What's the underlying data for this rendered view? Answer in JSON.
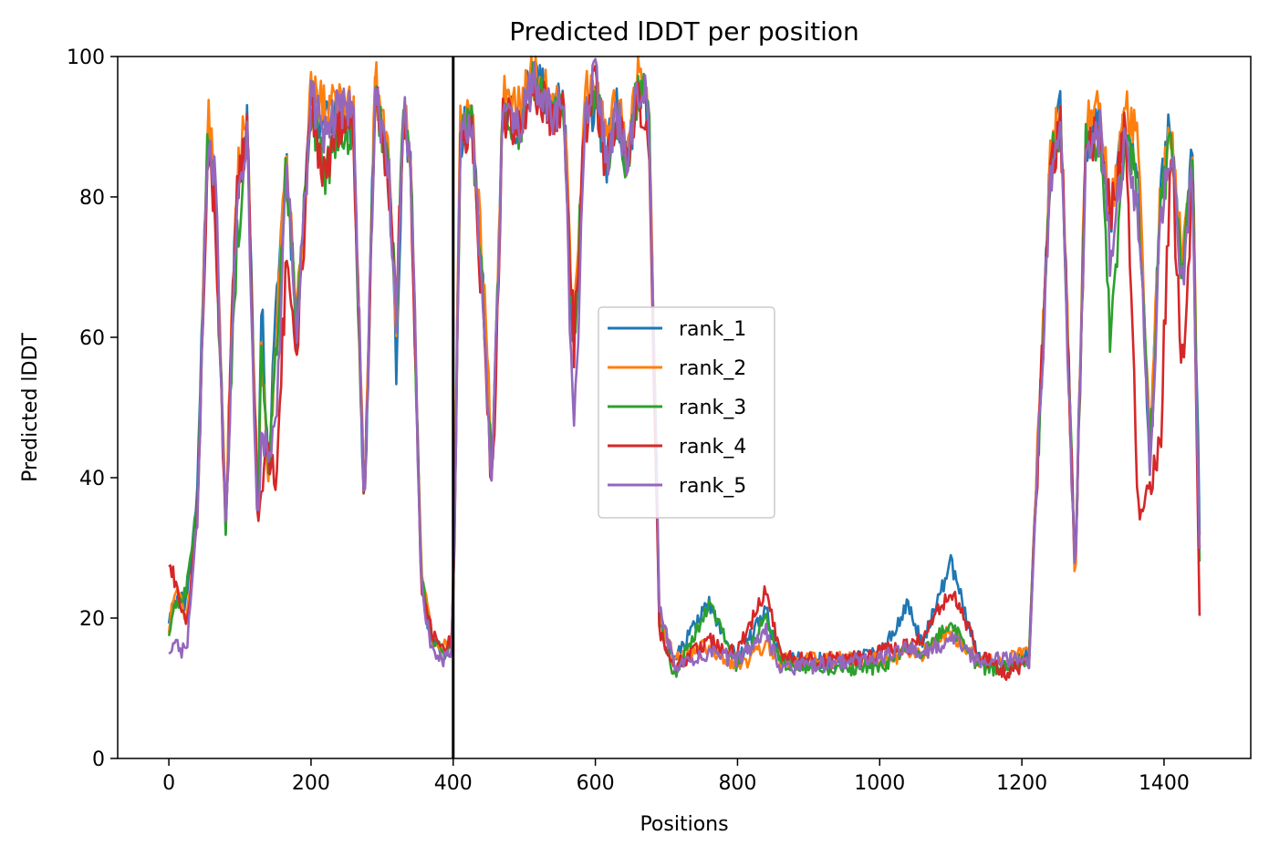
{
  "chart_data": {
    "type": "line",
    "title": "Predicted lDDT per position",
    "xlabel": "Positions",
    "ylabel": "Predicted lDDT",
    "xlim": [
      -72,
      1522
    ],
    "ylim": [
      0,
      100
    ],
    "xticks": [
      0,
      200,
      400,
      600,
      800,
      1000,
      1200,
      1400
    ],
    "yticks": [
      0,
      20,
      40,
      60,
      80,
      100
    ],
    "grid": false,
    "legend_position": "center",
    "vline": {
      "x": 400,
      "color": "#000000"
    },
    "key_x": [
      0,
      10,
      25,
      40,
      55,
      65,
      80,
      95,
      110,
      125,
      130,
      140,
      150,
      165,
      180,
      200,
      220,
      240,
      260,
      275,
      290,
      310,
      320,
      330,
      340,
      355,
      370,
      385,
      398,
      402,
      410,
      425,
      440,
      455,
      470,
      490,
      510,
      525,
      540,
      555,
      570,
      585,
      600,
      615,
      630,
      645,
      660,
      675,
      690,
      710,
      760,
      800,
      840,
      860,
      900,
      950,
      1000,
      1040,
      1060,
      1100,
      1140,
      1180,
      1210,
      1240,
      1255,
      1275,
      1290,
      1310,
      1325,
      1345,
      1365,
      1380,
      1395,
      1410,
      1425,
      1440,
      1450
    ],
    "series": [
      {
        "name": "rank_1",
        "color": "#1f77b4",
        "values": [
          20,
          23,
          22,
          38,
          90,
          80,
          33,
          80,
          90,
          33,
          66,
          42,
          65,
          85,
          60,
          94,
          90,
          92,
          90,
          35,
          96,
          82,
          56,
          92,
          85,
          25,
          16,
          15,
          16,
          35,
          88,
          92,
          70,
          40,
          93,
          90,
          97,
          96,
          92,
          94,
          58,
          92,
          93,
          85,
          93,
          85,
          96,
          93,
          20,
          14,
          22,
          14,
          21,
          14,
          14,
          14,
          15,
          22,
          16,
          28,
          14,
          13,
          15,
          85,
          93,
          26,
          88,
          91,
          75,
          91,
          80,
          40,
          80,
          92,
          68,
          86,
          32
        ]
      },
      {
        "name": "rank_2",
        "color": "#ff7f0e",
        "values": [
          19,
          24,
          20,
          35,
          92,
          82,
          34,
          82,
          92,
          34,
          60,
          40,
          58,
          88,
          62,
          96,
          92,
          94,
          92,
          34,
          97,
          84,
          60,
          94,
          87,
          27,
          17,
          16,
          17,
          34,
          90,
          93,
          72,
          42,
          95,
          92,
          97,
          97,
          93,
          95,
          60,
          94,
          97,
          87,
          94,
          86,
          97,
          95,
          21,
          14,
          16,
          13,
          16,
          14,
          14,
          14,
          14,
          15,
          15,
          18,
          14,
          14,
          15,
          87,
          92,
          24,
          90,
          92,
          78,
          92,
          89,
          42,
          82,
          90,
          72,
          88,
          30
        ]
      },
      {
        "name": "rank_3",
        "color": "#2ca02c",
        "values": [
          18,
          22,
          24,
          36,
          90,
          79,
          33,
          72,
          90,
          32,
          58,
          40,
          55,
          84,
          62,
          93,
          83,
          90,
          89,
          34,
          95,
          82,
          62,
          93,
          85,
          26,
          17,
          15,
          16,
          33,
          87,
          92,
          68,
          40,
          93,
          89,
          96,
          95,
          91,
          94,
          58,
          91,
          96,
          85,
          91,
          84,
          96,
          94,
          20,
          12,
          22,
          13,
          20,
          14,
          13,
          13,
          13,
          16,
          15,
          19,
          13,
          13,
          14,
          84,
          91,
          26,
          87,
          89,
          59,
          90,
          79,
          42,
          78,
          88,
          68,
          84,
          28
        ]
      },
      {
        "name": "rank_4",
        "color": "#d62728",
        "values": [
          28,
          25,
          18,
          34,
          89,
          78,
          33,
          81,
          89,
          33,
          39,
          45,
          38,
          70,
          56,
          93,
          82,
          91,
          89,
          35,
          95,
          81,
          64,
          92,
          84,
          25,
          18,
          16,
          17,
          32,
          86,
          91,
          66,
          37,
          92,
          89,
          95,
          94,
          90,
          93,
          59,
          90,
          96,
          84,
          92,
          84,
          95,
          89,
          18,
          13,
          17,
          15,
          24,
          15,
          14,
          14,
          15,
          16,
          17,
          24,
          15,
          12,
          14,
          83,
          90,
          26,
          86,
          90,
          77,
          90,
          33,
          40,
          45,
          88,
          55,
          82,
          21
        ]
      },
      {
        "name": "rank_5",
        "color": "#9467bd",
        "values": [
          16,
          16,
          15,
          34,
          88,
          84,
          33,
          78,
          89,
          32,
          46,
          44,
          45,
          86,
          60,
          94,
          88,
          93,
          91,
          34,
          95,
          82,
          64,
          93,
          86,
          25,
          15,
          14,
          15,
          33,
          87,
          92,
          68,
          39,
          93,
          90,
          96,
          95,
          91,
          94,
          44,
          91,
          97,
          85,
          92,
          84,
          95,
          94,
          22,
          13,
          15,
          14,
          18,
          13,
          13,
          14,
          14,
          16,
          15,
          17,
          14,
          14,
          14,
          82,
          89,
          25,
          86,
          89,
          71,
          89,
          76,
          40,
          78,
          87,
          66,
          83,
          29
        ]
      }
    ]
  }
}
